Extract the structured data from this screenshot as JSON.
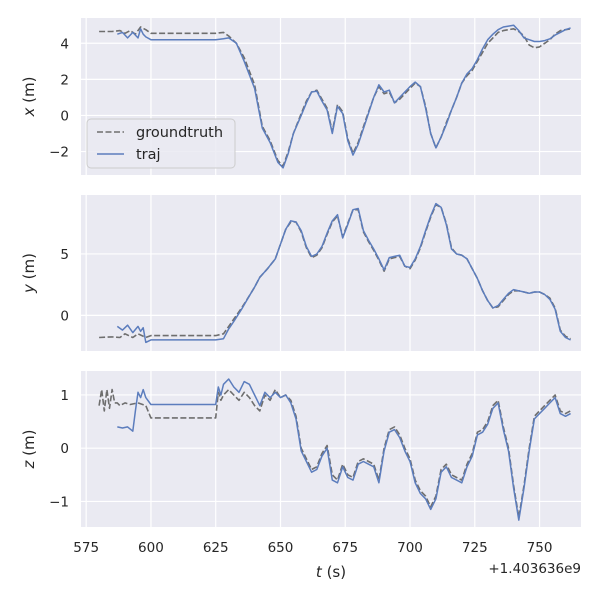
{
  "chart_data": [
    {
      "type": "line",
      "ylabel_var": "x",
      "ylabel_unit": " (m)",
      "xlim": [
        573,
        766
      ],
      "ylim": [
        -3.3,
        5.4
      ],
      "yticks": [
        {
          "v": 4,
          "label": "4"
        },
        {
          "v": 2,
          "label": "2"
        },
        {
          "v": 0,
          "label": "0"
        },
        {
          "v": -2,
          "label": "−2"
        }
      ],
      "legend": {
        "placement": "lower-left",
        "entries": [
          "groundtruth",
          "traj"
        ]
      },
      "series": [
        {
          "name": "groundtruth",
          "style": "dashed",
          "color": "#6e6e6e",
          "x": [
            580,
            585,
            588,
            590,
            592,
            594,
            596,
            598,
            600,
            605,
            610,
            615,
            620,
            625,
            628,
            630,
            633,
            636,
            640,
            643,
            646,
            649,
            651,
            653,
            655,
            658,
            660,
            662,
            664,
            666,
            668,
            670,
            672,
            674,
            676,
            678,
            680,
            683,
            686,
            688,
            690,
            692,
            694,
            696,
            698,
            700,
            702,
            704,
            706,
            708,
            710,
            712,
            714,
            716,
            718,
            720,
            722,
            724,
            726,
            728,
            730,
            732,
            734,
            736,
            738,
            740,
            742,
            744,
            746,
            748,
            750,
            752,
            754,
            756,
            758,
            760,
            762
          ],
          "y": [
            4.65,
            4.65,
            4.7,
            4.55,
            4.7,
            4.5,
            4.9,
            4.75,
            4.55,
            4.55,
            4.55,
            4.55,
            4.55,
            4.55,
            4.6,
            4.4,
            4.0,
            3.2,
            1.7,
            -0.6,
            -1.4,
            -2.5,
            -2.8,
            -2.0,
            -1.0,
            0.1,
            0.8,
            1.3,
            1.4,
            0.9,
            0.4,
            -0.9,
            0.6,
            0.2,
            -1.3,
            -2.1,
            -1.5,
            -0.2,
            1.0,
            1.6,
            1.2,
            1.3,
            0.7,
            0.9,
            1.2,
            1.5,
            1.8,
            1.6,
            0.5,
            -1.0,
            -1.8,
            -1.2,
            -0.4,
            0.3,
            1.0,
            1.8,
            2.2,
            2.5,
            3.0,
            3.5,
            4.0,
            4.3,
            4.6,
            4.7,
            4.75,
            4.8,
            4.65,
            4.4,
            3.9,
            3.75,
            3.8,
            4.0,
            4.2,
            4.5,
            4.7,
            4.75,
            4.8
          ]
        },
        {
          "name": "traj",
          "style": "solid",
          "color": "#5c7dbd",
          "x": [
            587,
            589,
            591,
            593,
            595,
            596,
            597,
            598,
            600,
            605,
            610,
            615,
            620,
            625,
            628,
            630,
            633,
            636,
            640,
            643,
            646,
            649,
            651,
            653,
            655,
            658,
            660,
            662,
            664,
            666,
            668,
            670,
            672,
            674,
            676,
            678,
            680,
            683,
            686,
            688,
            690,
            692,
            694,
            696,
            698,
            700,
            702,
            704,
            706,
            708,
            710,
            712,
            714,
            716,
            718,
            720,
            722,
            724,
            726,
            728,
            730,
            732,
            734,
            736,
            738,
            740,
            742,
            744,
            746,
            748,
            750,
            752,
            754,
            756,
            758,
            760,
            762
          ],
          "y": [
            4.5,
            4.6,
            4.3,
            4.6,
            4.3,
            4.8,
            4.5,
            4.35,
            4.2,
            4.2,
            4.2,
            4.2,
            4.2,
            4.2,
            4.25,
            4.3,
            4.0,
            3.0,
            1.5,
            -0.7,
            -1.5,
            -2.6,
            -2.9,
            -2.1,
            -1.0,
            0.0,
            0.7,
            1.3,
            1.35,
            0.8,
            0.3,
            -1.0,
            0.5,
            0.1,
            -1.4,
            -2.2,
            -1.6,
            -0.3,
            1.0,
            1.7,
            1.3,
            1.4,
            0.7,
            1.0,
            1.3,
            1.6,
            1.85,
            1.6,
            0.4,
            -1.0,
            -1.8,
            -1.2,
            -0.5,
            0.3,
            1.0,
            1.8,
            2.3,
            2.6,
            3.1,
            3.7,
            4.2,
            4.5,
            4.75,
            4.9,
            4.95,
            5.0,
            4.7,
            4.3,
            4.2,
            4.1,
            4.1,
            4.15,
            4.25,
            4.45,
            4.6,
            4.75,
            4.85
          ]
        }
      ]
    },
    {
      "type": "line",
      "ylabel_var": "y",
      "ylabel_unit": " (m)",
      "xlim": [
        573,
        766
      ],
      "ylim": [
        -2.9,
        9.8
      ],
      "yticks": [
        {
          "v": 5,
          "label": "5"
        },
        {
          "v": 0,
          "label": "0"
        }
      ],
      "series": [
        {
          "name": "groundtruth",
          "style": "dashed",
          "color": "#6e6e6e",
          "x": [
            580,
            585,
            588,
            590,
            593,
            595,
            598,
            600,
            605,
            610,
            615,
            620,
            625,
            628,
            630,
            632,
            635,
            638,
            640,
            642,
            645,
            648,
            650,
            652,
            654,
            656,
            658,
            660,
            662,
            664,
            666,
            668,
            670,
            672,
            674,
            676,
            678,
            680,
            682,
            684,
            686,
            688,
            690,
            692,
            694,
            696,
            698,
            700,
            702,
            704,
            706,
            708,
            710,
            712,
            714,
            716,
            718,
            720,
            722,
            724,
            726,
            728,
            730,
            732,
            734,
            736,
            738,
            740,
            742,
            744,
            746,
            748,
            750,
            752,
            754,
            756,
            758,
            760,
            762
          ],
          "y": [
            -1.8,
            -1.75,
            -1.8,
            -1.5,
            -1.8,
            -1.5,
            -1.8,
            -1.65,
            -1.65,
            -1.65,
            -1.65,
            -1.65,
            -1.65,
            -1.5,
            -0.9,
            -0.3,
            0.6,
            1.6,
            2.3,
            3.1,
            3.8,
            4.6,
            5.8,
            7.0,
            7.6,
            7.6,
            6.8,
            5.5,
            4.7,
            4.9,
            5.5,
            6.6,
            7.6,
            8.1,
            6.4,
            7.5,
            8.6,
            8.6,
            6.8,
            6.0,
            5.3,
            4.5,
            3.6,
            4.6,
            4.7,
            4.8,
            4.0,
            3.8,
            4.5,
            5.5,
            6.8,
            8.0,
            9.0,
            8.8,
            7.5,
            5.5,
            5.0,
            4.9,
            4.6,
            3.8,
            3.0,
            2.0,
            1.2,
            0.6,
            0.7,
            1.2,
            1.7,
            2.0,
            2.0,
            1.9,
            1.8,
            1.9,
            1.9,
            1.7,
            1.4,
            0.6,
            -1.2,
            -1.7,
            -1.9
          ]
        },
        {
          "name": "traj",
          "style": "solid",
          "color": "#5c7dbd",
          "x": [
            587,
            589,
            591,
            593,
            595,
            596,
            597,
            598,
            600,
            605,
            610,
            615,
            620,
            625,
            628,
            630,
            632,
            635,
            638,
            640,
            642,
            645,
            648,
            650,
            652,
            654,
            656,
            658,
            660,
            662,
            664,
            666,
            668,
            670,
            672,
            674,
            676,
            678,
            680,
            682,
            684,
            686,
            688,
            690,
            692,
            694,
            696,
            698,
            700,
            702,
            704,
            706,
            708,
            710,
            712,
            714,
            716,
            718,
            720,
            722,
            724,
            726,
            728,
            730,
            732,
            734,
            736,
            738,
            740,
            742,
            744,
            746,
            748,
            750,
            752,
            754,
            756,
            758,
            760,
            762
          ],
          "y": [
            -0.9,
            -1.2,
            -0.8,
            -1.4,
            -0.9,
            -1.3,
            -1.0,
            -2.2,
            -2.0,
            -2.0,
            -2.0,
            -2.0,
            -2.0,
            -2.0,
            -1.9,
            -1.1,
            -0.5,
            0.5,
            1.6,
            2.3,
            3.1,
            3.8,
            4.6,
            5.8,
            7.0,
            7.7,
            7.6,
            6.9,
            5.6,
            4.8,
            5.0,
            5.6,
            6.7,
            7.7,
            8.2,
            6.3,
            7.4,
            8.6,
            8.7,
            6.9,
            6.1,
            5.4,
            4.6,
            3.7,
            4.7,
            4.8,
            4.9,
            4.0,
            3.9,
            4.6,
            5.6,
            6.9,
            8.1,
            9.1,
            8.8,
            7.4,
            5.4,
            5.0,
            4.9,
            4.6,
            3.8,
            3.0,
            2.0,
            1.2,
            0.6,
            0.8,
            1.3,
            1.8,
            2.1,
            2.0,
            1.9,
            1.8,
            1.9,
            1.9,
            1.7,
            1.3,
            0.5,
            -1.3,
            -1.8,
            -2.0
          ]
        }
      ]
    },
    {
      "type": "line",
      "ylabel_var": "z",
      "ylabel_unit": " (m)",
      "xlim": [
        573,
        766
      ],
      "ylim": [
        -1.48,
        1.45
      ],
      "yticks": [
        {
          "v": 1,
          "label": "1"
        },
        {
          "v": 0,
          "label": "0"
        },
        {
          "v": -1,
          "label": "−1"
        }
      ],
      "xticks": [
        {
          "v": 575,
          "label": "575"
        },
        {
          "v": 600,
          "label": "600"
        },
        {
          "v": 625,
          "label": "625"
        },
        {
          "v": 650,
          "label": "650"
        },
        {
          "v": 675,
          "label": "675"
        },
        {
          "v": 700,
          "label": "700"
        },
        {
          "v": 725,
          "label": "725"
        },
        {
          "v": 750,
          "label": "750"
        }
      ],
      "xlabel_var": "t",
      "xlabel_unit": " (s)",
      "offset_text": "+1.403636e9",
      "series": [
        {
          "name": "groundtruth",
          "style": "dashed",
          "color": "#6e6e6e",
          "x": [
            580,
            581,
            582,
            583,
            584,
            585,
            586,
            587,
            588,
            590,
            592,
            595,
            598,
            600,
            605,
            610,
            615,
            620,
            625,
            626,
            627,
            628,
            630,
            632,
            634,
            636,
            638,
            640,
            642,
            644,
            646,
            648,
            650,
            652,
            654,
            656,
            658,
            660,
            662,
            664,
            666,
            668,
            670,
            672,
            674,
            676,
            678,
            680,
            682,
            684,
            686,
            688,
            690,
            692,
            694,
            696,
            698,
            700,
            702,
            704,
            706,
            708,
            710,
            712,
            714,
            716,
            718,
            720,
            722,
            724,
            726,
            728,
            730,
            732,
            734,
            736,
            738,
            740,
            742,
            744,
            746,
            748,
            750,
            752,
            754,
            756,
            758,
            760,
            762
          ],
          "y": [
            0.8,
            1.1,
            0.7,
            1.1,
            0.75,
            1.1,
            0.85,
            0.85,
            0.8,
            0.85,
            0.82,
            0.85,
            0.8,
            0.57,
            0.57,
            0.57,
            0.57,
            0.57,
            0.57,
            1.05,
            0.9,
            1.0,
            1.1,
            1.0,
            0.9,
            1.05,
            0.95,
            0.8,
            0.7,
            1.0,
            0.9,
            1.1,
            0.95,
            1.0,
            0.9,
            0.6,
            0.0,
            -0.2,
            -0.4,
            -0.35,
            -0.1,
            0.05,
            -0.5,
            -0.6,
            -0.3,
            -0.5,
            -0.55,
            -0.25,
            -0.2,
            -0.25,
            -0.3,
            -0.6,
            0.0,
            0.35,
            0.4,
            0.25,
            0.0,
            -0.2,
            -0.6,
            -0.8,
            -0.9,
            -1.1,
            -0.9,
            -0.4,
            -0.3,
            -0.5,
            -0.55,
            -0.6,
            -0.3,
            -0.1,
            0.3,
            0.35,
            0.5,
            0.8,
            0.9,
            0.4,
            0.0,
            -0.7,
            -1.3,
            -0.7,
            0.0,
            0.6,
            0.7,
            0.8,
            0.9,
            1.0,
            0.7,
            0.65,
            0.7
          ]
        },
        {
          "name": "traj",
          "style": "solid",
          "color": "#5c7dbd",
          "x": [
            587,
            589,
            591,
            593,
            594,
            595,
            596,
            597,
            598,
            600,
            605,
            610,
            615,
            620,
            625,
            626,
            627,
            628,
            630,
            632,
            634,
            636,
            638,
            640,
            642,
            644,
            646,
            648,
            650,
            652,
            654,
            656,
            658,
            660,
            662,
            664,
            666,
            668,
            670,
            672,
            674,
            676,
            678,
            680,
            682,
            684,
            686,
            688,
            690,
            692,
            694,
            696,
            698,
            700,
            702,
            704,
            706,
            708,
            710,
            712,
            714,
            716,
            718,
            720,
            722,
            724,
            726,
            728,
            730,
            732,
            734,
            736,
            738,
            740,
            742,
            744,
            746,
            748,
            750,
            752,
            754,
            756,
            758,
            760,
            762
          ],
          "y": [
            0.4,
            0.38,
            0.4,
            0.32,
            0.7,
            1.05,
            0.95,
            1.1,
            0.95,
            0.82,
            0.82,
            0.82,
            0.82,
            0.82,
            0.82,
            1.15,
            1.0,
            1.2,
            1.3,
            1.15,
            1.05,
            1.25,
            1.2,
            1.0,
            0.8,
            1.05,
            0.95,
            1.05,
            0.95,
            1.0,
            0.85,
            0.55,
            -0.05,
            -0.25,
            -0.45,
            -0.4,
            -0.15,
            0.0,
            -0.6,
            -0.65,
            -0.35,
            -0.55,
            -0.6,
            -0.3,
            -0.25,
            -0.3,
            -0.35,
            -0.65,
            -0.05,
            0.3,
            0.35,
            0.2,
            -0.05,
            -0.25,
            -0.65,
            -0.85,
            -0.95,
            -1.15,
            -0.95,
            -0.45,
            -0.35,
            -0.55,
            -0.6,
            -0.65,
            -0.35,
            -0.15,
            0.25,
            0.3,
            0.45,
            0.75,
            0.85,
            0.35,
            -0.05,
            -0.75,
            -1.35,
            -0.75,
            -0.05,
            0.55,
            0.65,
            0.75,
            0.85,
            0.95,
            0.65,
            0.6,
            0.65
          ]
        }
      ]
    }
  ]
}
